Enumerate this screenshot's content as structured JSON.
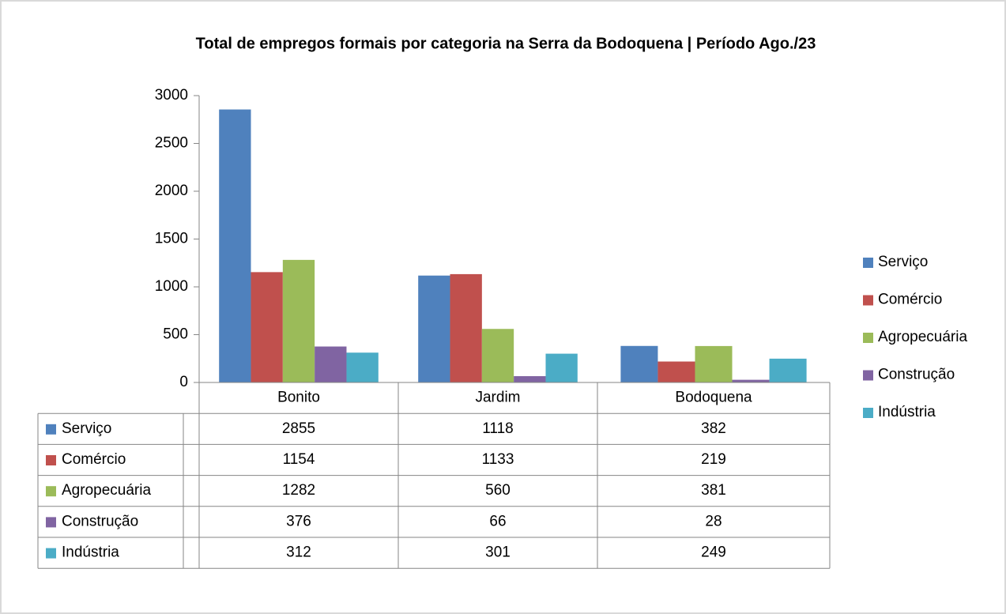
{
  "chart_data": {
    "type": "bar",
    "title": "Total de empregos formais por categoria na Serra da Bodoquena  | Período  Ago./23",
    "categories": [
      "Bonito",
      "Jardim",
      "Bodoquena"
    ],
    "series": [
      {
        "name": "Serviço",
        "color": "#4f81bd",
        "values": [
          2855,
          1118,
          382
        ]
      },
      {
        "name": "Comércio",
        "color": "#c0504d",
        "values": [
          1154,
          1133,
          219
        ]
      },
      {
        "name": "Agropecuária",
        "color": "#9bbb59",
        "values": [
          1282,
          560,
          381
        ]
      },
      {
        "name": "Construção",
        "color": "#8064a2",
        "values": [
          376,
          66,
          28
        ]
      },
      {
        "name": "Indústria",
        "color": "#4bacc6",
        "values": [
          312,
          301,
          249
        ]
      }
    ],
    "ylim": [
      0,
      3000
    ],
    "yticks": [
      0,
      500,
      1000,
      1500,
      2000,
      2500,
      3000
    ],
    "legend": "right",
    "data_table": true
  }
}
